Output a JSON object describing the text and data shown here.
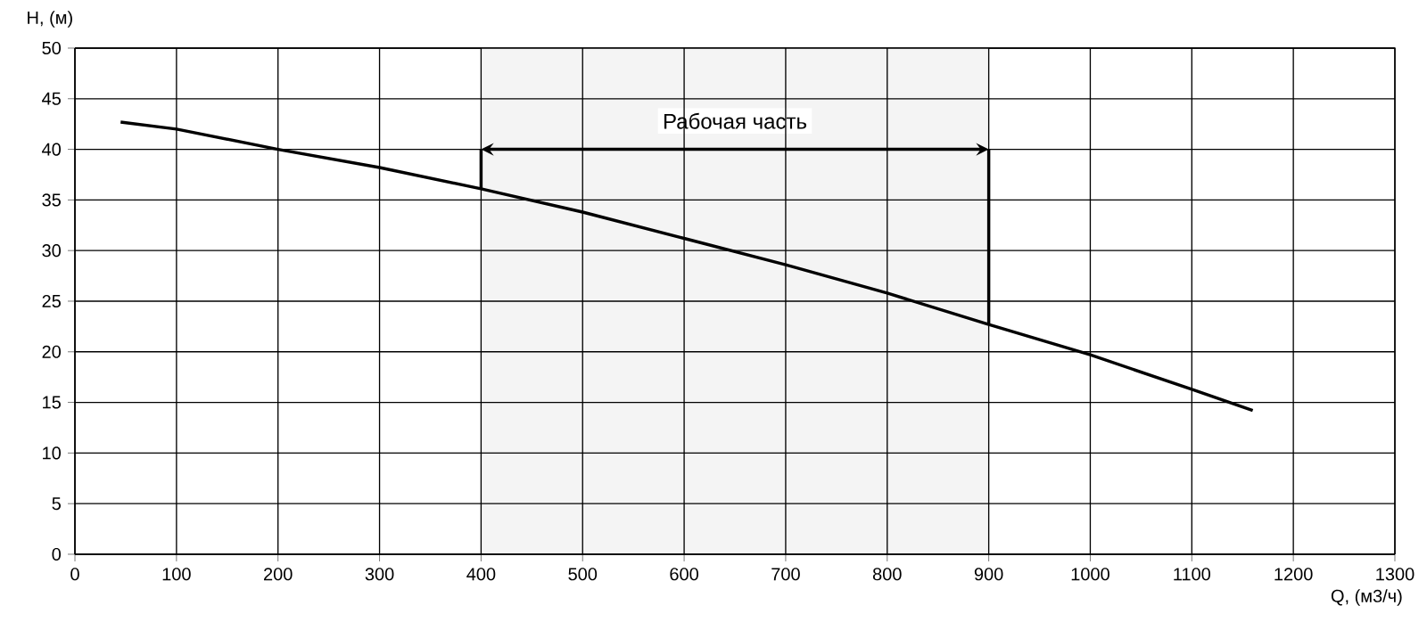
{
  "chart_data": {
    "type": "line",
    "xlabel": "Q, (м3/ч)",
    "ylabel": "H, (м)",
    "x": [
      45,
      100,
      200,
      300,
      400,
      500,
      600,
      700,
      800,
      900,
      1000,
      1100,
      1160
    ],
    "series": [
      {
        "color": "#000000",
        "values": [
          42.7,
          42,
          40,
          38.2,
          36.1,
          33.8,
          31.2,
          28.6,
          25.8,
          22.7,
          19.7,
          16.3,
          14.2
        ]
      }
    ],
    "xlim": [
      0,
      1300
    ],
    "xticks": [
      0,
      100,
      200,
      300,
      400,
      500,
      600,
      700,
      800,
      900,
      1000,
      1100,
      1200,
      1300
    ],
    "ylim": [
      0,
      50
    ],
    "yticks": [
      0,
      5,
      10,
      15,
      20,
      25,
      30,
      35,
      40,
      45,
      50
    ],
    "bands": [
      {
        "axis": "x",
        "from": 400,
        "to": 900,
        "label": "Рабочая часть",
        "color": "#f4f4f4"
      }
    ],
    "grid": true,
    "marker": "none",
    "line_style": "solid"
  }
}
